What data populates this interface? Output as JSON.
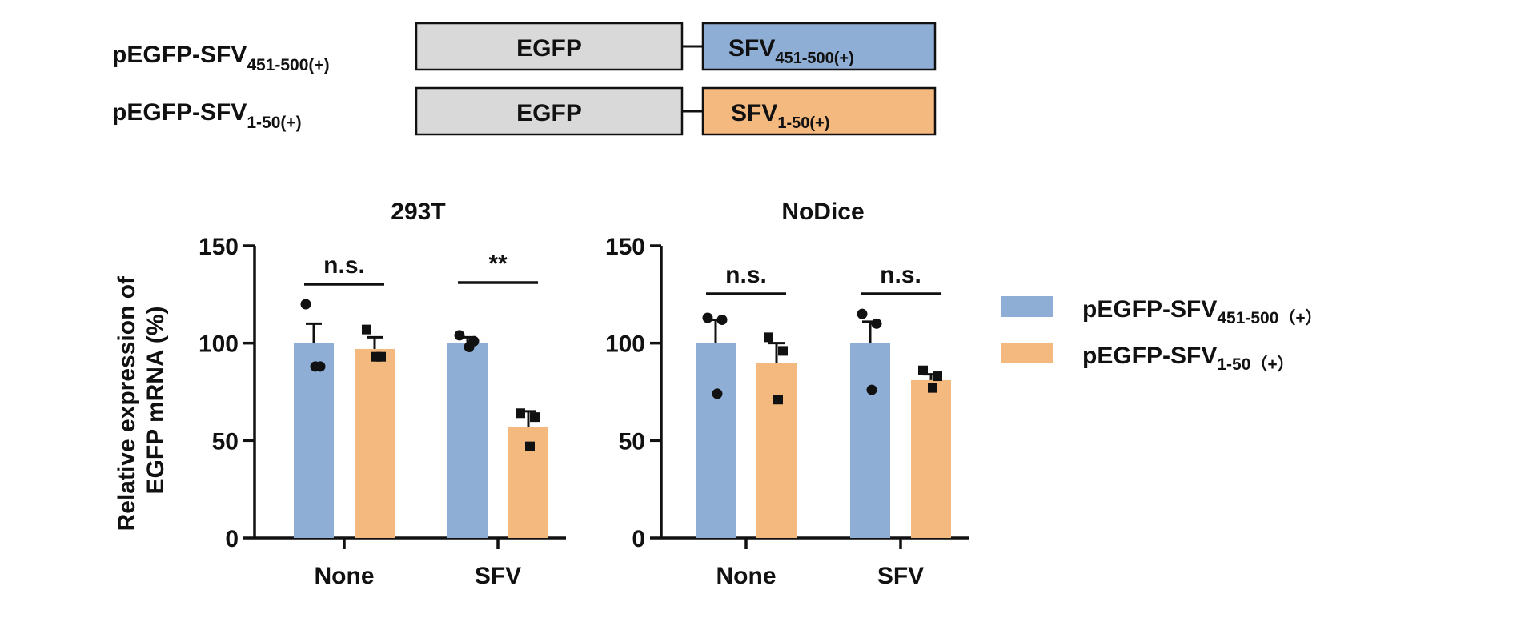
{
  "constructs": [
    {
      "name": "pEGFP-SFV",
      "name_sub": "451-500(+)",
      "left_box": "EGFP",
      "right_box": "SFV",
      "right_box_sub": "451-500(+)",
      "color": "#8faed6"
    },
    {
      "name": "pEGFP-SFV",
      "name_sub": "1-50(+)",
      "left_box": "EGFP",
      "right_box": "SFV",
      "right_box_sub": "1-50(+)",
      "color": "#f4b97e"
    }
  ],
  "egfp_box_color": "#d9d9d9",
  "ylabel_line1": "Relative expression of",
  "ylabel_line2": "EGFP mRNA (%)",
  "legend": [
    {
      "name": "pEGFP-SFV",
      "sub": "451-500（+）",
      "color": "#8faed6"
    },
    {
      "name": "pEGFP-SFV",
      "sub": "1-50（+）",
      "color": "#f4b97e"
    }
  ],
  "chart_data": [
    {
      "type": "bar",
      "title": "293T",
      "categories": [
        "None",
        "SFV"
      ],
      "ylim": [
        0,
        150
      ],
      "yticks": [
        0,
        50,
        100,
        150
      ],
      "series": [
        {
          "name": "pEGFP-SFV451-500(+)",
          "color": "#8faed6",
          "values": [
            100,
            100
          ],
          "errors": [
            10,
            3
          ],
          "points": [
            [
              120,
              88,
              88
            ],
            [
              104,
              101,
              98
            ]
          ],
          "marker": "circle"
        },
        {
          "name": "pEGFP-SFV1-50(+)",
          "color": "#f4b97e",
          "values": [
            97,
            57
          ],
          "errors": [
            6,
            8
          ],
          "points": [
            [
              107,
              93,
              93
            ],
            [
              64,
              62,
              47
            ]
          ],
          "marker": "square"
        }
      ],
      "significance": [
        "n.s.",
        "**"
      ]
    },
    {
      "type": "bar",
      "title": "NoDice",
      "categories": [
        "None",
        "SFV"
      ],
      "ylim": [
        0,
        150
      ],
      "yticks": [
        0,
        50,
        100,
        150
      ],
      "series": [
        {
          "name": "pEGFP-SFV451-500(+)",
          "color": "#8faed6",
          "values": [
            100,
            100
          ],
          "errors": [
            12,
            11
          ],
          "points": [
            [
              113,
              112,
              74
            ],
            [
              115,
              110,
              76
            ]
          ],
          "marker": "circle"
        },
        {
          "name": "pEGFP-SFV1-50(+)",
          "color": "#f4b97e",
          "values": [
            90,
            81
          ],
          "errors": [
            10,
            3
          ],
          "points": [
            [
              103,
              96,
              71
            ],
            [
              86,
              83,
              77
            ]
          ],
          "marker": "square"
        }
      ],
      "significance": [
        "n.s.",
        "n.s."
      ]
    }
  ]
}
